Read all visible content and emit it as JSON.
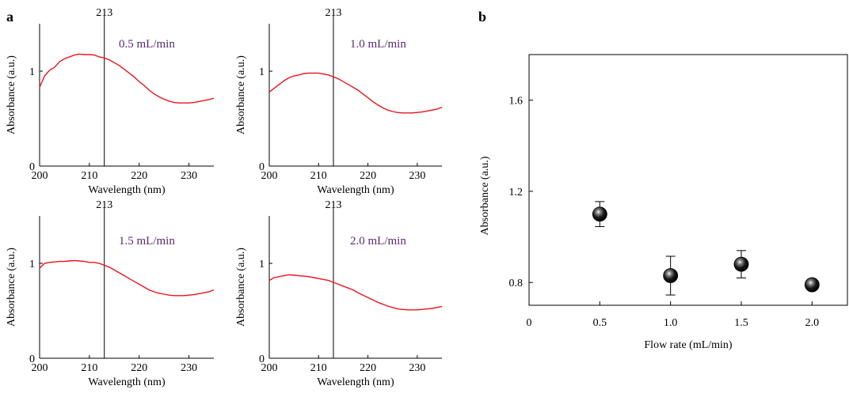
{
  "panels": {
    "a": "a",
    "b": "b"
  },
  "colors": {
    "spectrum_line": "#e8141c",
    "flow_label": "#5a2a6e",
    "marker": "#000000"
  },
  "chart_data": [
    {
      "type": "line",
      "panel": "a",
      "flow_label": "0.5 mL/min",
      "ref_line_x": 213,
      "ref_line_label": "213",
      "xlabel": "Wavelength (nm)",
      "ylabel": "Absorbance (a.u.)",
      "xlim": [
        200,
        235
      ],
      "ylim": [
        0,
        1.5
      ],
      "xticks": [
        200,
        210,
        220,
        230
      ],
      "yticks": [
        0,
        1
      ],
      "series": [
        {
          "x": [
            200,
            201,
            202,
            203,
            204,
            205,
            206,
            207,
            208,
            209,
            210,
            211,
            212,
            213,
            214,
            215,
            216,
            217,
            218,
            219,
            220,
            221,
            222,
            223,
            224,
            225,
            226,
            227,
            228,
            229,
            230,
            231,
            232,
            233,
            234,
            235
          ],
          "y": [
            0.83,
            0.95,
            1.01,
            1.04,
            1.1,
            1.13,
            1.15,
            1.17,
            1.18,
            1.175,
            1.175,
            1.17,
            1.15,
            1.14,
            1.12,
            1.09,
            1.06,
            1.02,
            0.98,
            0.94,
            0.89,
            0.85,
            0.8,
            0.76,
            0.73,
            0.705,
            0.685,
            0.67,
            0.665,
            0.665,
            0.665,
            0.67,
            0.68,
            0.69,
            0.7,
            0.715
          ]
        }
      ]
    },
    {
      "type": "line",
      "panel": "a",
      "flow_label": "1.0 mL/min",
      "ref_line_x": 213,
      "ref_line_label": "213",
      "xlabel": "Wavelength (nm)",
      "ylabel": "Absorbance (a.u.)",
      "xlim": [
        200,
        235
      ],
      "ylim": [
        0,
        1.5
      ],
      "xticks": [
        200,
        210,
        220,
        230
      ],
      "yticks": [
        0,
        1
      ],
      "series": [
        {
          "x": [
            200,
            201,
            202,
            203,
            204,
            205,
            206,
            207,
            208,
            209,
            210,
            211,
            212,
            213,
            214,
            215,
            216,
            217,
            218,
            219,
            220,
            221,
            222,
            223,
            224,
            225,
            226,
            227,
            228,
            229,
            230,
            231,
            232,
            233,
            234,
            235
          ],
          "y": [
            0.78,
            0.82,
            0.86,
            0.9,
            0.93,
            0.95,
            0.96,
            0.975,
            0.98,
            0.98,
            0.98,
            0.97,
            0.96,
            0.94,
            0.92,
            0.89,
            0.86,
            0.83,
            0.8,
            0.76,
            0.72,
            0.68,
            0.645,
            0.615,
            0.59,
            0.575,
            0.565,
            0.56,
            0.56,
            0.56,
            0.565,
            0.57,
            0.58,
            0.59,
            0.6,
            0.62
          ]
        }
      ]
    },
    {
      "type": "line",
      "panel": "a",
      "flow_label": "1.5 mL/min",
      "ref_line_x": 213,
      "ref_line_label": "213",
      "xlabel": "Wavelength (nm)",
      "ylabel": "Absorbance (a.u.)",
      "xlim": [
        200,
        235
      ],
      "ylim": [
        0,
        1.5
      ],
      "xticks": [
        200,
        210,
        220,
        230
      ],
      "yticks": [
        0,
        1
      ],
      "series": [
        {
          "x": [
            200,
            201,
            202,
            203,
            204,
            205,
            206,
            207,
            208,
            209,
            210,
            211,
            212,
            213,
            214,
            215,
            216,
            217,
            218,
            219,
            220,
            221,
            222,
            223,
            224,
            225,
            226,
            227,
            228,
            229,
            230,
            231,
            232,
            233,
            234,
            235
          ],
          "y": [
            0.95,
            1.0,
            1.01,
            1.015,
            1.02,
            1.02,
            1.025,
            1.03,
            1.025,
            1.02,
            1.01,
            1.01,
            1.0,
            0.98,
            0.96,
            0.93,
            0.9,
            0.87,
            0.84,
            0.81,
            0.78,
            0.75,
            0.72,
            0.7,
            0.685,
            0.675,
            0.665,
            0.66,
            0.66,
            0.66,
            0.665,
            0.67,
            0.68,
            0.69,
            0.7,
            0.72
          ]
        }
      ]
    },
    {
      "type": "line",
      "panel": "a",
      "flow_label": "2.0 mL/min",
      "ref_line_x": 213,
      "ref_line_label": "213",
      "xlabel": "Wavelength (nm)",
      "ylabel": "Absorbance (a.u.)",
      "xlim": [
        200,
        235
      ],
      "ylim": [
        0,
        1.5
      ],
      "xticks": [
        200,
        210,
        220,
        230
      ],
      "yticks": [
        0,
        1
      ],
      "series": [
        {
          "x": [
            200,
            201,
            202,
            203,
            204,
            205,
            206,
            207,
            208,
            209,
            210,
            211,
            212,
            213,
            214,
            215,
            216,
            217,
            218,
            219,
            220,
            221,
            222,
            223,
            224,
            225,
            226,
            227,
            228,
            229,
            230,
            231,
            232,
            233,
            234,
            235
          ],
          "y": [
            0.82,
            0.85,
            0.86,
            0.87,
            0.88,
            0.875,
            0.87,
            0.865,
            0.86,
            0.85,
            0.84,
            0.83,
            0.82,
            0.8,
            0.78,
            0.76,
            0.74,
            0.72,
            0.69,
            0.665,
            0.64,
            0.615,
            0.59,
            0.57,
            0.55,
            0.535,
            0.52,
            0.515,
            0.51,
            0.51,
            0.51,
            0.515,
            0.52,
            0.525,
            0.535,
            0.545
          ]
        }
      ]
    },
    {
      "type": "scatter",
      "panel": "b",
      "xlabel": "Flow rate (mL/min)",
      "ylabel": "Absorbance (a.u.)",
      "xlim": [
        0,
        2.25
      ],
      "ylim": [
        0.7,
        1.8
      ],
      "xticks": [
        0,
        0.5,
        1.0,
        1.5,
        2.0
      ],
      "xtick_labels": [
        "0",
        "0.5",
        "1.0",
        "1.5",
        "2.0"
      ],
      "yticks": [
        0.8,
        1.2,
        1.6
      ],
      "ytick_labels": [
        "0.8",
        "1.2",
        "1.6"
      ],
      "series": [
        {
          "x": [
            0.5,
            1.0,
            1.5,
            2.0
          ],
          "y": [
            1.1,
            0.83,
            0.88,
            0.79
          ],
          "error": [
            0.055,
            0.085,
            0.06,
            0.0
          ]
        }
      ]
    }
  ]
}
